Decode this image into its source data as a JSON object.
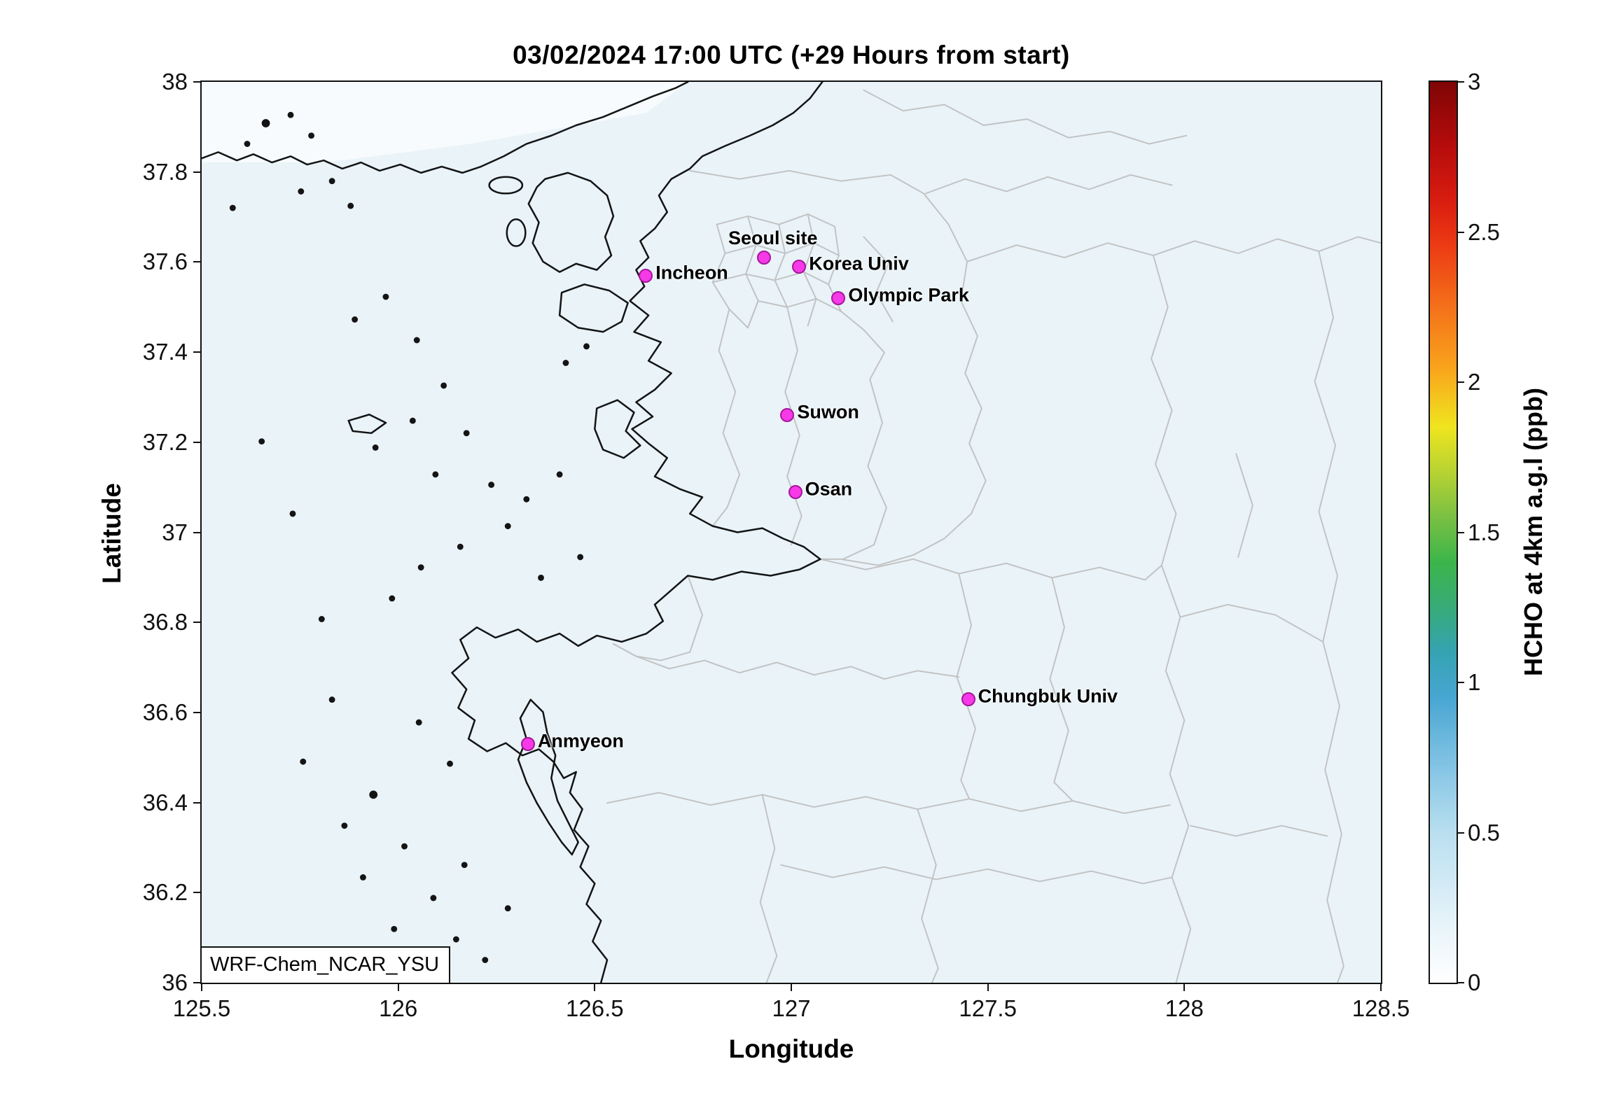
{
  "figure": {
    "title": "03/02/2024 17:00 UTC (+29 Hours from start)",
    "model_label": "WRF-Chem_NCAR_YSU"
  },
  "axes": {
    "x": {
      "label": "Longitude",
      "min": 125.5,
      "max": 128.5,
      "ticks": [
        "125.5",
        "126",
        "126.5",
        "127",
        "127.5",
        "128",
        "128.5"
      ]
    },
    "y": {
      "label": "Latitude",
      "min": 36,
      "max": 38,
      "ticks": [
        "38",
        "37.8",
        "37.6",
        "37.4",
        "37.2",
        "37",
        "36.8",
        "36.6",
        "36.4",
        "36.2",
        "36"
      ]
    }
  },
  "colorbar": {
    "label": "HCHO at 4km a.g.l (ppb)",
    "min": 0,
    "max": 3,
    "ticks_top_to_bottom": [
      "3",
      "2.5",
      "2",
      "1.5",
      "1",
      "0.5",
      "0"
    ],
    "stops": [
      {
        "value": 0.0,
        "color": "#ffffff"
      },
      {
        "value": 0.2,
        "color": "#e6f3f9"
      },
      {
        "value": 0.5,
        "color": "#b9dff0"
      },
      {
        "value": 0.75,
        "color": "#7cc0e2"
      },
      {
        "value": 0.95,
        "color": "#47a6d2"
      },
      {
        "value": 1.1,
        "color": "#35a3b2"
      },
      {
        "value": 1.25,
        "color": "#37ab78"
      },
      {
        "value": 1.4,
        "color": "#3cb54a"
      },
      {
        "value": 1.55,
        "color": "#7ac043"
      },
      {
        "value": 1.7,
        "color": "#b7d332"
      },
      {
        "value": 1.85,
        "color": "#efe51f"
      },
      {
        "value": 2.05,
        "color": "#f9a31c"
      },
      {
        "value": 2.25,
        "color": "#f4711a"
      },
      {
        "value": 2.45,
        "color": "#ec3c14"
      },
      {
        "value": 2.6,
        "color": "#d91d10"
      },
      {
        "value": 2.8,
        "color": "#b30b0b"
      },
      {
        "value": 3.0,
        "color": "#7e0505"
      }
    ]
  },
  "colors": {
    "sea_land_background": "#e9f3f8",
    "coastline": "#141414",
    "admin_boundary": "#c2c2c2",
    "station_marker_fill": "#f63ae8",
    "station_marker_edge": "#a8169c"
  },
  "chart_data": {
    "type": "heatmap",
    "title": "03/02/2024 17:00 UTC (+29 Hours from start)",
    "xlabel": "Longitude",
    "ylabel": "Latitude",
    "xlim": [
      125.5,
      128.5
    ],
    "ylim": [
      36,
      38
    ],
    "grid": false,
    "colorbar_label": "HCHO at 4km a.g.l (ppb)",
    "colorbar_range": [
      0,
      3
    ],
    "colorbar_ticks": [
      0,
      0.5,
      1,
      1.5,
      2,
      2.5,
      3
    ],
    "field_summary": "Modeled HCHO at 4 km a.g.l is near zero (~0.0-0.2 ppb) across the entire displayed domain; shading is uniformly near-white/pale blue with no elevated plumes",
    "uniform_value_estimate_ppb": 0.1,
    "map_layers": [
      "coastlines (black)",
      "administrative boundaries (gray)"
    ],
    "annotations": [
      "WRF-Chem_NCAR_YSU"
    ],
    "stations": [
      {
        "name": "Seoul site",
        "lon": 126.93,
        "lat": 37.61,
        "label_anchor": "above"
      },
      {
        "name": "Korea Univ",
        "lon": 127.02,
        "lat": 37.59,
        "label_anchor": "right"
      },
      {
        "name": "Incheon",
        "lon": 126.63,
        "lat": 37.57,
        "label_anchor": "right"
      },
      {
        "name": "Olympic Park",
        "lon": 127.12,
        "lat": 37.52,
        "label_anchor": "right"
      },
      {
        "name": "Suwon",
        "lon": 126.99,
        "lat": 37.26,
        "label_anchor": "right"
      },
      {
        "name": "Osan",
        "lon": 127.01,
        "lat": 37.09,
        "label_anchor": "right"
      },
      {
        "name": "Anmyeon",
        "lon": 126.33,
        "lat": 36.53,
        "label_anchor": "right"
      },
      {
        "name": "Chungbuk Univ",
        "lon": 127.45,
        "lat": 36.63,
        "label_anchor": "right"
      }
    ]
  }
}
